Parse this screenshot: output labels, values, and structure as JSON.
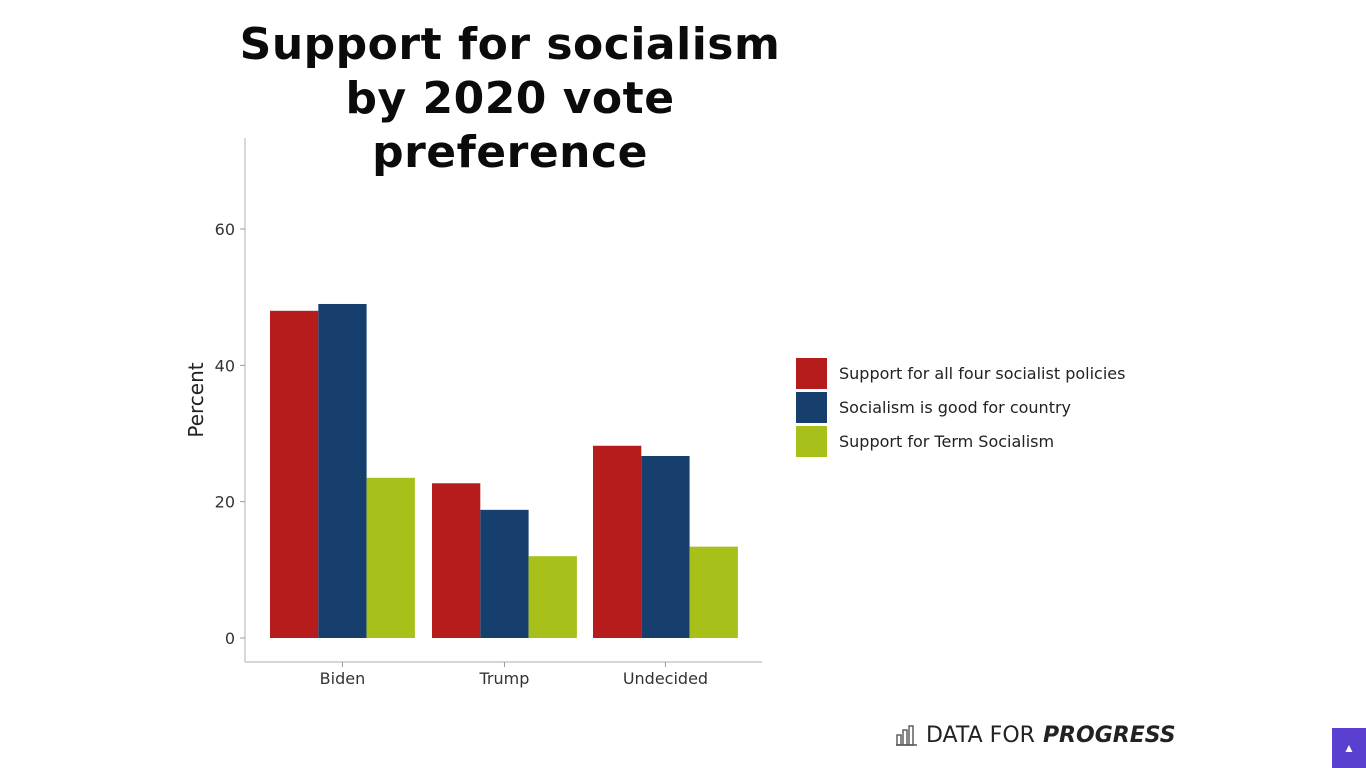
{
  "chart_data": {
    "type": "bar",
    "title": [
      "Support for socialism",
      "by 2020 vote preference"
    ],
    "categories": [
      "Biden",
      "Trump",
      "Undecided"
    ],
    "series": [
      {
        "name": "Support for all four socialist policies",
        "color": "#b71c1c",
        "values": [
          48,
          22.7,
          28.2
        ]
      },
      {
        "name": "Socialism is good for country",
        "color": "#173f6e",
        "values": [
          49,
          18.8,
          26.7
        ]
      },
      {
        "name": "Support for Term Socialism",
        "color": "#a8c019",
        "values": [
          23.5,
          12,
          13.4
        ]
      }
    ],
    "ylabel": "Percent",
    "xlabel": "",
    "ylim": [
      0,
      73
    ],
    "yticks": [
      0,
      20,
      40,
      60
    ],
    "grid": false,
    "legend_position": "right"
  },
  "brand": {
    "icon": "bar-chart-outline-icon",
    "text_regular": "DATA FOR",
    "text_bold": "PROGRESS"
  },
  "corner_button": {
    "icon": "caret-up-icon",
    "glyph": "▲",
    "color": "#5a3fd1"
  }
}
